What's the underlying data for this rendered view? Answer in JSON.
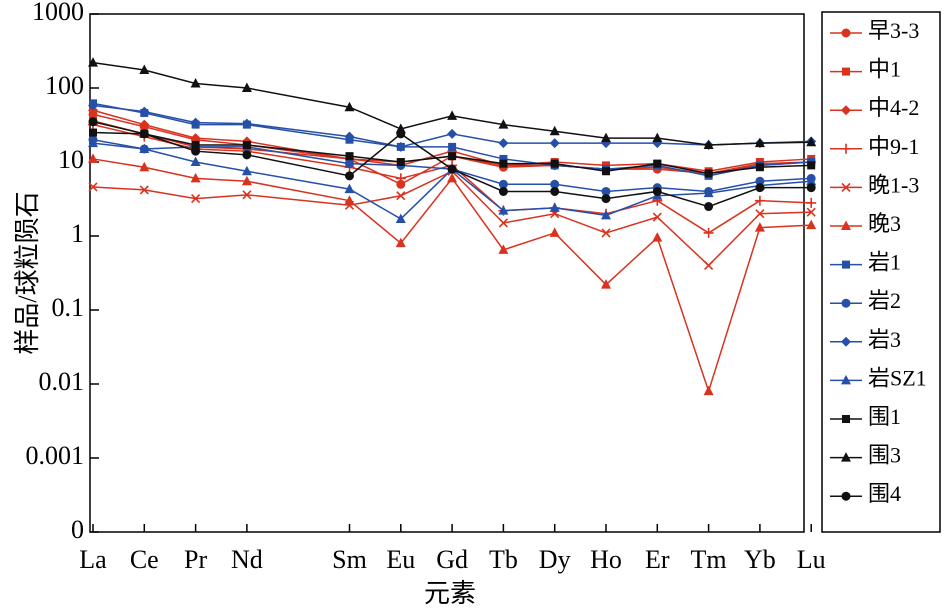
{
  "chart_data": {
    "type": "line",
    "title": "",
    "xlabel": "元素",
    "ylabel": "样品/球粒陨石",
    "yscale": "log",
    "ylim": [
      0.0001,
      1000
    ],
    "legend_position": "right",
    "grid": false,
    "categories": [
      "La",
      "Ce",
      "Pr",
      "Nd",
      "Sm",
      "Eu",
      "Gd",
      "Tb",
      "Dy",
      "Ho",
      "Er",
      "Tm",
      "Yb",
      "Lu"
    ],
    "category_positions": [
      0,
      1,
      2,
      3,
      5,
      6,
      7,
      8,
      9,
      10,
      11,
      12,
      13,
      14
    ],
    "y_ticks": [
      {
        "value": 0.0001,
        "label": "0"
      },
      {
        "value": 0.001,
        "label": "0.001"
      },
      {
        "value": 0.01,
        "label": "0.01"
      },
      {
        "value": 0.1,
        "label": "0.1"
      },
      {
        "value": 1,
        "label": "1"
      },
      {
        "value": 10,
        "label": "10"
      },
      {
        "value": 100,
        "label": "100"
      },
      {
        "value": 1000,
        "label": "1000"
      }
    ],
    "series": [
      {
        "name": "早3-3",
        "color": "#d9321f",
        "marker": "circle",
        "values": [
          44,
          30,
          20,
          17,
          11,
          5,
          12,
          8.5,
          9,
          8,
          8,
          7,
          9,
          10
        ]
      },
      {
        "name": "中1",
        "color": "#d9321f",
        "marker": "square",
        "values": [
          36,
          24,
          16,
          15,
          11,
          10,
          12,
          9,
          10,
          9,
          9.5,
          7.5,
          10,
          11
        ]
      },
      {
        "name": "中4-2",
        "color": "#d9321f",
        "marker": "diamond",
        "values": [
          50,
          32,
          21,
          19,
          11,
          9,
          14,
          9,
          9,
          8,
          8.5,
          7,
          9.5,
          10
        ]
      },
      {
        "name": "中9-1",
        "color": "#d9321f",
        "marker": "plus",
        "values": [
          32,
          22,
          15,
          14,
          8.5,
          6,
          9,
          2.2,
          2.4,
          2.0,
          3.0,
          1.1,
          3.0,
          2.8
        ]
      },
      {
        "name": "晚1-3",
        "color": "#d9321f",
        "marker": "x",
        "values": [
          4.6,
          4.2,
          3.2,
          3.6,
          2.6,
          3.5,
          7.5,
          1.5,
          2.0,
          1.1,
          1.8,
          0.4,
          2.0,
          2.1
        ]
      },
      {
        "name": "晚3",
        "color": "#d9321f",
        "marker": "triangle",
        "values": [
          11,
          8.5,
          6,
          5.5,
          3,
          0.8,
          6,
          0.65,
          1.1,
          0.22,
          0.95,
          0.008,
          1.3,
          1.4
        ]
      },
      {
        "name": "岩1",
        "color": "#2650a8",
        "marker": "square",
        "values": [
          62,
          46,
          32,
          32,
          20,
          16,
          16,
          11,
          9,
          8,
          9,
          6.5,
          9,
          10
        ]
      },
      {
        "name": "岩2",
        "color": "#2650a8",
        "marker": "circle",
        "values": [
          20,
          15,
          16,
          16,
          9.5,
          9,
          8,
          5,
          5,
          4,
          4.5,
          4,
          5.5,
          6
        ]
      },
      {
        "name": "岩3",
        "color": "#2650a8",
        "marker": "diamond",
        "values": [
          58,
          48,
          34,
          33,
          22,
          16,
          24,
          18,
          18,
          18,
          18,
          17,
          18,
          19
        ]
      },
      {
        "name": "岩SZ1",
        "color": "#2650a8",
        "marker": "triangle",
        "values": [
          18,
          15,
          10,
          7.5,
          4.3,
          1.7,
          8,
          2.2,
          2.4,
          1.9,
          3.5,
          3.8,
          4.8,
          5.5
        ]
      },
      {
        "name": "围1",
        "color": "#111111",
        "marker": "square",
        "values": [
          25,
          24,
          17,
          17,
          12,
          10,
          12,
          9.5,
          9.5,
          7.5,
          9.5,
          7,
          8.5,
          9
        ]
      },
      {
        "name": "围3",
        "color": "#111111",
        "marker": "triangle",
        "values": [
          220,
          175,
          115,
          100,
          55,
          28,
          42,
          32,
          26,
          21,
          21,
          17,
          18,
          18.5
        ]
      },
      {
        "name": "围4",
        "color": "#111111",
        "marker": "circle",
        "values": [
          35,
          24,
          14,
          12.5,
          6.5,
          24,
          8,
          4,
          4,
          3.2,
          4,
          2.5,
          4.5,
          4.5
        ]
      }
    ]
  }
}
